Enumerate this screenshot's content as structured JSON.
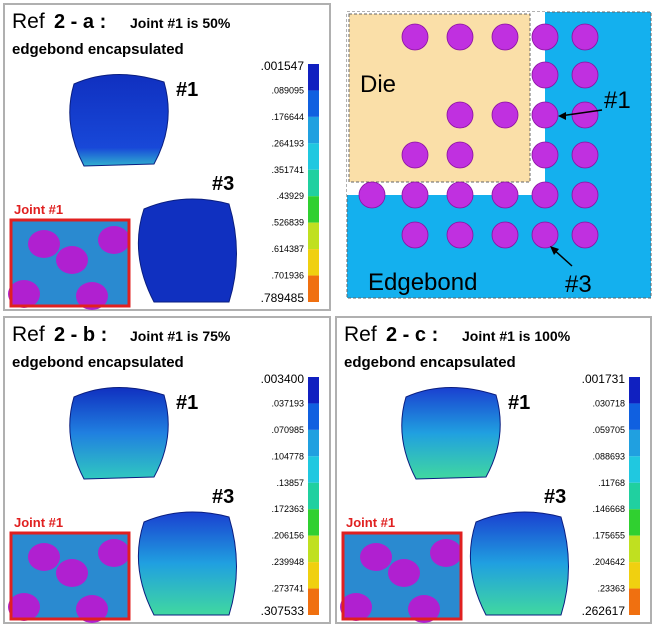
{
  "panels": [
    {
      "ref": "Ref",
      "id": "2 - a :",
      "caption": "Joint #1 is 50%",
      "caption2": "edgebond encapsulated",
      "joint1": "#1",
      "joint3": "#3",
      "inset": "Joint #1",
      "scale": [
        ".001547",
        ".089095",
        ".176644",
        ".264193",
        ".351741",
        ".43929",
        ".526839",
        ".614387",
        ".701936",
        ".789485"
      ]
    },
    {
      "ref": "Ref",
      "id": "2 - b :",
      "caption": "Joint #1 is 75%",
      "caption2": "edgebond encapsulated",
      "joint1": "#1",
      "joint3": "#3",
      "inset": "Joint #1",
      "scale": [
        ".003400",
        ".037193",
        ".070985",
        ".104778",
        ".13857",
        ".172363",
        ".206156",
        ".239948",
        ".273741",
        ".307533"
      ]
    },
    {
      "ref": "Ref",
      "id": "2 - c :",
      "caption": "Joint #1 is 100%",
      "caption2": "edgebond encapsulated",
      "joint1": "#1",
      "joint3": "#3",
      "inset": "Joint #1",
      "scale": [
        ".001731",
        ".030718",
        ".059705",
        ".088693",
        ".11768",
        ".146668",
        ".175655",
        ".204642",
        ".23363",
        ".262617"
      ]
    }
  ],
  "diagram": {
    "die": "Die",
    "edgebond": "Edgebond",
    "joint1": "#1",
    "joint3": "#3"
  }
}
